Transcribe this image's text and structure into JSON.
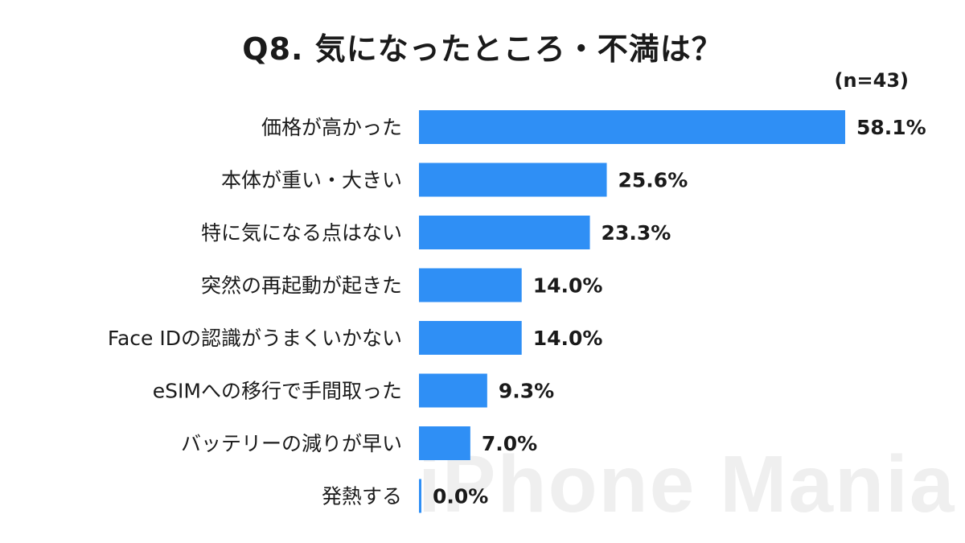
{
  "chart_data": {
    "type": "bar",
    "orientation": "horizontal",
    "title": "Q8. 気になったところ・不満は？",
    "sample_size": "(n=43)",
    "categories": [
      "価格が高かった",
      "本体が重い・大きい",
      "特に気になる点はない",
      "突然の再起動が起きた",
      "Face IDの認識がうまくいかない",
      "eSIMへの移行で手間取った",
      "バッテリーの減りが早い",
      "発熱する"
    ],
    "values": [
      58.1,
      25.6,
      23.3,
      14.0,
      14.0,
      9.3,
      7.0,
      0.0
    ],
    "value_labels": [
      "58.1%",
      "25.6%",
      "23.3%",
      "14.0%",
      "14.0%",
      "9.3%",
      "7.0%",
      "0.0%"
    ],
    "bar_color": "#2f8ff5",
    "xlim": [
      0,
      58.1
    ],
    "grid": false
  },
  "watermark": "iPhone Mania"
}
